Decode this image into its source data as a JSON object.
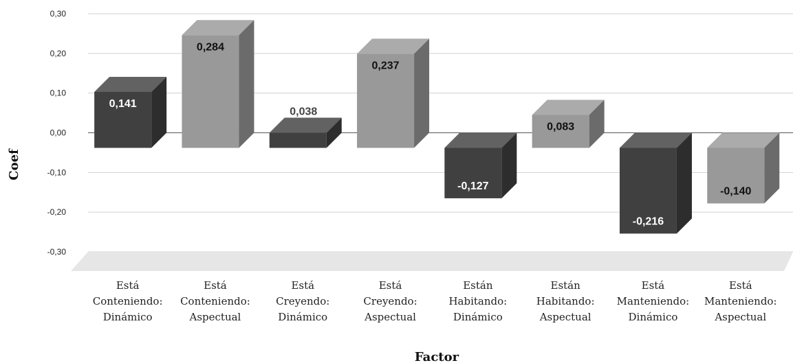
{
  "chart_data": {
    "type": "bar",
    "xlabel": "Factor",
    "ylabel": "Coef",
    "ylim": [
      -0.3,
      0.3
    ],
    "y_ticks": [
      "0,30",
      "0,20",
      "0,10",
      "0,00",
      "-0,10",
      "-0,20",
      "-0,30"
    ],
    "grid": true,
    "style": "3d-columns",
    "categories": [
      [
        "Está",
        "Conteniendo:",
        "Dinámico"
      ],
      [
        "Está",
        "Conteniendo:",
        "Aspectual"
      ],
      [
        "Está",
        "Creyendo:",
        "Dinámico"
      ],
      [
        "Está",
        "Creyendo:",
        "Aspectual"
      ],
      [
        "Están",
        "Habitando:",
        "Dinámico"
      ],
      [
        "Están",
        "Habitando:",
        "Aspectual"
      ],
      [
        "Está",
        "Manteniendo:",
        "Dinámico"
      ],
      [
        "Está",
        "Manteniendo:",
        "Aspectual"
      ]
    ],
    "values": [
      0.141,
      0.284,
      0.038,
      0.237,
      -0.127,
      0.083,
      -0.216,
      -0.14
    ],
    "data_labels": [
      "0,141",
      "0,284",
      "0,038",
      "0,237",
      "-0,127",
      "0,083",
      "-0,216",
      "-0,140"
    ],
    "colors": {
      "Dinámico": "#404040",
      "Aspectual": "#999999",
      "grid": "#d0d0d0",
      "floor": "#e6e6e6"
    }
  }
}
